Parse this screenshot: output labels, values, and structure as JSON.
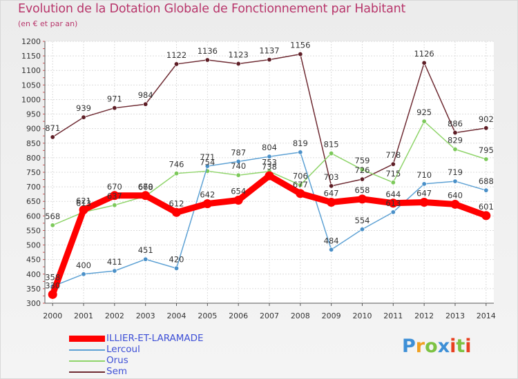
{
  "chart_data": {
    "type": "line",
    "title": "Evolution de la Dotation Globale de Fonctionnement par Habitant",
    "subtitle": "(en € et par an)",
    "x": [
      2000,
      2001,
      2002,
      2003,
      2004,
      2005,
      2006,
      2007,
      2008,
      2009,
      2010,
      2011,
      2012,
      2013,
      2014
    ],
    "ylim": [
      300,
      1200
    ],
    "yticks": [
      300,
      350,
      400,
      450,
      500,
      550,
      600,
      650,
      700,
      750,
      800,
      850,
      900,
      950,
      1000,
      1050,
      1100,
      1150,
      1200
    ],
    "grid": true,
    "legend_position": "bottom-left",
    "series": [
      {
        "name": "ILLIER-ET-LARAMADE",
        "color": "#ff0000",
        "values": [
          330,
          621,
          670,
          670,
          612,
          642,
          654,
          738,
          677,
          647,
          658,
          644,
          647,
          640,
          601
        ]
      },
      {
        "name": "Lercoul",
        "color": "#5da1d4",
        "values": [
          358,
          400,
          411,
          451,
          420,
          771,
          787,
          804,
          819,
          484,
          554,
          613,
          710,
          719,
          688
        ]
      },
      {
        "name": "Orus",
        "color": "#8fd46a",
        "values": [
          568,
          613,
          637,
          668,
          746,
          754,
          740,
          753,
          706,
          815,
          759,
          715,
          925,
          829,
          795
        ]
      },
      {
        "name": "Sem",
        "color": "#6e2a32",
        "values": [
          871,
          939,
          971,
          984,
          1122,
          1136,
          1123,
          1137,
          1156,
          703,
          726,
          778,
          1126,
          886,
          902
        ]
      }
    ]
  },
  "legend_items": [
    {
      "label": "ILLIER-ET-LARAMADE",
      "color": "#ff0000",
      "thickness": 9
    },
    {
      "label": "Lercoul",
      "color": "#5da1d4",
      "thickness": 2
    },
    {
      "label": "Orus",
      "color": "#8fd46a",
      "thickness": 2
    },
    {
      "label": "Sem",
      "color": "#6e2a32",
      "thickness": 2
    }
  ],
  "logo": {
    "p1": "P",
    "p2": "r",
    "p3": "o",
    "p4": "x",
    "p5": "i",
    "p6": "t",
    "p7": "i"
  }
}
